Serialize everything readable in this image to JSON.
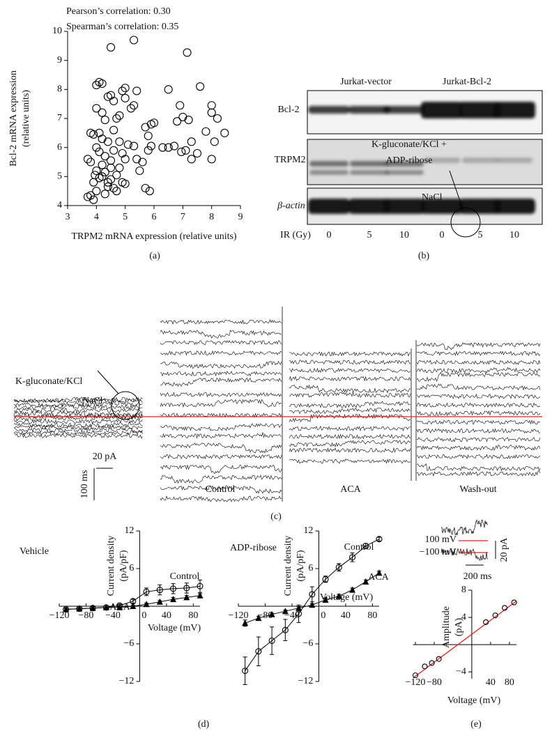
{
  "chart_data": [
    {
      "type": "scatter",
      "annotations": [
        "Pearson’s correlation: 0.30",
        "Spearman’s correlation: 0.35"
      ],
      "xlabel": "TRPM2 mRNA expression (relative units)",
      "ylabel": [
        "Bcl-2 mRNA expression",
        "(relative units)"
      ],
      "x": [
        4.5,
        5.3,
        7.15,
        6.5,
        7.6,
        8.0,
        8.0,
        8.2,
        6.9,
        7.0,
        6.8,
        7.2,
        7.8,
        8.45,
        8.1,
        7.3,
        7.1,
        6.95,
        7.5,
        7.3,
        8.0,
        6.7,
        6.5,
        6.3,
        6.0,
        5.9,
        5.7,
        5.8,
        5.9,
        5.8,
        5.6,
        5.7,
        5.85,
        5.5,
        5.4,
        5.3,
        5.4,
        5.3,
        5.2,
        5.0,
        4.9,
        5.0,
        4.8,
        4.7,
        4.6,
        4.5,
        4.4,
        4.2,
        4.1,
        4.0,
        4.0,
        4.2,
        4.3,
        4.1,
        3.9,
        3.8,
        4.2,
        4.4,
        4.6,
        4.8,
        4.9,
        5.1,
        5.0,
        4.8,
        4.9,
        5.0,
        4.6,
        4.4,
        4.2,
        4.0,
        3.9,
        3.8,
        3.7,
        3.7,
        3.8,
        3.9,
        4.0,
        4.3,
        4.5,
        4.7,
        4.2,
        4.1,
        4.3,
        4.5,
        4.0,
        4.6,
        4.1,
        4.3,
        4.5,
        3.95,
        4.4,
        4.7
      ],
      "values": [
        9.45,
        9.7,
        9.27,
        8.0,
        8.1,
        7.45,
        7.2,
        7.0,
        7.45,
        7.05,
        6.9,
        6.95,
        6.55,
        6.5,
        6.2,
        6.2,
        5.9,
        5.85,
        5.8,
        5.6,
        5.6,
        6.05,
        6.0,
        6.0,
        6.85,
        6.8,
        6.7,
        6.4,
        6.05,
        5.9,
        5.5,
        4.6,
        4.5,
        5.2,
        5.6,
        6.05,
        7.95,
        7.45,
        7.35,
        7.7,
        7.95,
        8.05,
        7.1,
        7.0,
        7.6,
        7.8,
        7.75,
        8.2,
        8.25,
        8.15,
        7.35,
        7.2,
        6.95,
        6.5,
        6.45,
        6.5,
        6.3,
        6.2,
        6.6,
        6.2,
        5.8,
        6.1,
        5.6,
        5.3,
        4.8,
        4.75,
        4.6,
        4.8,
        5.0,
        5.2,
        4.8,
        5.5,
        5.6,
        4.3,
        4.35,
        4.2,
        4.5,
        4.4,
        4.9,
        5.05,
        5.4,
        5.85,
        5.7,
        5.55,
        6.0,
        5.9,
        4.95,
        5.15,
        5.3,
        5.05,
        4.65,
        4.5
      ],
      "marker": "circle-open",
      "color": "#000000",
      "xlim": [
        3,
        9
      ],
      "ylim": [
        4,
        10
      ],
      "xticks": [
        3,
        4,
        5,
        6,
        7,
        8,
        9
      ],
      "yticks": [
        4,
        5,
        6,
        7,
        8,
        9,
        10
      ]
    },
    {
      "type": "line",
      "annotations": [
        "Vehicle"
      ],
      "xlabel": "Voltage (mV)",
      "ylabel": [
        "Current density",
        "(pA/pF)"
      ],
      "x": [
        -110,
        -90,
        -70,
        -50,
        -30,
        -10,
        10,
        30,
        50,
        70,
        90
      ],
      "series": [
        {
          "name": "Control",
          "color": "#000000",
          "marker": "circle-open",
          "values": [
            -0.5,
            -0.4,
            -0.3,
            -0.2,
            0.1,
            0.8,
            2.3,
            2.6,
            2.8,
            2.9,
            3.2
          ],
          "errors": [
            0.2,
            0.2,
            0.2,
            0.2,
            0.2,
            0.3,
            0.6,
            0.8,
            0.8,
            0.8,
            1.0
          ]
        },
        {
          "name": "ACA",
          "color": "#000000",
          "marker": "triangle",
          "values": [
            -0.5,
            -0.4,
            -0.3,
            -0.2,
            -0.2,
            0,
            0.3,
            0.7,
            1.1,
            1.4,
            1.7
          ],
          "errors": [
            0.2,
            0.2,
            0.2,
            0.2,
            0.2,
            0.2,
            0.2,
            0.2,
            0.3,
            0.3,
            0.3
          ]
        }
      ],
      "xlim": [
        -120,
        90
      ],
      "ylim": [
        -12,
        12
      ],
      "xticks": [
        {
          "value": -120,
          "label": "−120"
        },
        {
          "value": -80,
          "label": "−80"
        },
        {
          "value": -40,
          "label": "−40"
        },
        0,
        40,
        80
      ],
      "yticks": [
        {
          "value": -12,
          "label": "−12"
        },
        {
          "value": -6,
          "label": "−6"
        },
        6,
        12
      ]
    },
    {
      "type": "line",
      "annotations": [
        "ADP-ribose"
      ],
      "xlabel": "Voltage (mV)",
      "ylabel": [
        "Current density",
        "(pA/pF)"
      ],
      "x": [
        -110,
        -90,
        -70,
        -50,
        -30,
        -10,
        10,
        30,
        50,
        70,
        90
      ],
      "series": [
        {
          "name": "Control",
          "color": "#000000",
          "marker": "circle-open",
          "values": [
            -10.3,
            -7.2,
            -5.5,
            -3.8,
            -1.2,
            1.9,
            4.3,
            6.2,
            7.8,
            9.6,
            10.7
          ],
          "errors": [
            2.2,
            2.3,
            2.2,
            1.7,
            1.4,
            1.2,
            0.5,
            0.6,
            0.7,
            0.4,
            0.3
          ]
        },
        {
          "name": "ACA",
          "color": "#000000",
          "marker": "triangle",
          "values": [
            -2.7,
            -1.9,
            -1.3,
            -0.8,
            -0.3,
            0.2,
            1.0,
            1.6,
            2.6,
            3.9,
            5.3
          ],
          "errors": [
            0.5,
            0.3,
            0.2,
            0.2,
            0.2,
            0.2,
            0.3,
            0.3,
            0.3,
            0.3,
            0.3
          ]
        }
      ],
      "xlim": [
        -120,
        90
      ],
      "ylim": [
        -12,
        12
      ],
      "xticks": [
        {
          "value": -120,
          "label": "−120"
        },
        {
          "value": -80,
          "label": "−80"
        },
        {
          "value": -40,
          "label": "−40"
        },
        0,
        40,
        80
      ],
      "yticks": [
        {
          "value": -12,
          "label": "−12"
        },
        {
          "value": -6,
          "label": "−6"
        },
        6,
        12
      ]
    },
    {
      "type": "scatter",
      "xlabel": "Voltage (mV)",
      "ylabel": [
        "Amplitude",
        "(pA)"
      ],
      "x": [
        -120,
        -100,
        -85,
        -70,
        30,
        50,
        70,
        90
      ],
      "values": [
        -4.5,
        -3.2,
        -2.7,
        -2.1,
        3.3,
        4.3,
        5.4,
        6.2
      ],
      "marker": "circle-open",
      "color": "#000000",
      "fit": {
        "color": "#e02020",
        "x": [
          -125,
          95
        ],
        "values": [
          -4.9,
          6.4
        ]
      },
      "xlim": [
        -125,
        95
      ],
      "ylim": [
        -5,
        8
      ],
      "xticks": [
        {
          "value": -120,
          "label": "−120"
        },
        {
          "value": -80,
          "label": "−80"
        },
        40,
        80
      ],
      "yticks": [
        {
          "value": -4,
          "label": "−4"
        },
        4,
        8
      ],
      "inset": {
        "labels": [
          "100 mV",
          "−100 mV"
        ],
        "scale_y": "20 pA",
        "scale_x": "200 ms",
        "line_color": "#e02020"
      }
    }
  ],
  "blot": {
    "groups": [
      "Jurkat-vector",
      "Jurkat-Bcl-2"
    ],
    "rows": [
      "Bcl-2",
      "TRPM2",
      "β-actin"
    ],
    "lane_axis": "IR (Gy)",
    "lanes": [
      "0",
      "5",
      "10",
      "0",
      "5",
      "10"
    ]
  },
  "patch_clamp": {
    "left_diagram": {
      "pipette": "K-gluconate/KCl",
      "bath": "NaCl"
    },
    "right_diagram": {
      "pipette": [
        "K-gluconate/KCl +",
        "ADP-ribose"
      ],
      "bath": "NaCl"
    },
    "scale_current": "20 pA",
    "scale_time": "100 ms",
    "conditions": [
      "Control",
      "ACA",
      "Wash-out"
    ],
    "baseline_color": "#e02020"
  },
  "panel_labels": [
    "(a)",
    "(b)",
    "(c)",
    "(d)",
    "(e)"
  ]
}
